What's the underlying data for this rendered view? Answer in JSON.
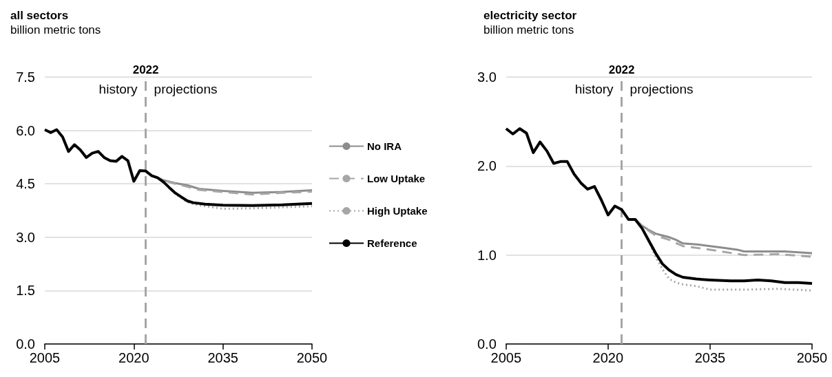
{
  "chart_data": [
    {
      "type": "line",
      "title": "all sectors",
      "subtitle": "billion metric tons",
      "xlim": [
        2005,
        2050
      ],
      "xticks": [
        2005,
        2020,
        2035,
        2050
      ],
      "ylim": [
        0,
        7.5
      ],
      "yticks": [
        {
          "value": 0,
          "label": "0.0"
        },
        1.5,
        {
          "value": 3,
          "label": "3.0"
        },
        4.5,
        {
          "value": 6,
          "label": "6.0"
        },
        7.5
      ],
      "grid": "y",
      "legend": "right",
      "marker": "none",
      "ref_lines": [
        {
          "axis": "x",
          "value": 2022,
          "label": "2022",
          "color": "#a6a6a6",
          "line_style": "dashed"
        }
      ],
      "annotations": [
        "history",
        "projections"
      ],
      "series": [
        {
          "name": "No IRA",
          "color": "#8c8c8c",
          "line_style": "solid",
          "x": [
            2023,
            2024,
            2025,
            2027,
            2029,
            2031,
            2035,
            2040,
            2045,
            2050
          ],
          "values": [
            4.73,
            4.67,
            4.6,
            4.52,
            4.46,
            4.36,
            4.3,
            4.25,
            4.27,
            4.32
          ]
        },
        {
          "name": "Low Uptake",
          "color": "#a6a6a6",
          "line_style": "dashed",
          "x": [
            2023,
            2024,
            2025,
            2027,
            2029,
            2031,
            2035,
            2040,
            2045,
            2050
          ],
          "values": [
            4.73,
            4.67,
            4.6,
            4.5,
            4.42,
            4.33,
            4.27,
            4.2,
            4.25,
            4.28
          ]
        },
        {
          "name": "High Uptake",
          "color": "#a6a6a6",
          "line_style": "dotted",
          "x": [
            2023,
            2024,
            2025,
            2026,
            2027,
            2028,
            2029,
            2030,
            2032,
            2035,
            2040,
            2045,
            2050
          ],
          "values": [
            4.73,
            4.67,
            4.55,
            4.38,
            4.22,
            4.1,
            3.99,
            3.93,
            3.87,
            3.8,
            3.81,
            3.84,
            3.87
          ]
        },
        {
          "name": "Reference",
          "color": "#000000",
          "line_style": "solid",
          "x": [
            2005,
            2006,
            2007,
            2008,
            2009,
            2010,
            2011,
            2012,
            2013,
            2014,
            2015,
            2016,
            2017,
            2018,
            2019,
            2020,
            2021,
            2022,
            2023,
            2024,
            2025,
            2026,
            2027,
            2028,
            2029,
            2030,
            2032,
            2035,
            2040,
            2045,
            2050
          ],
          "values": [
            6.02,
            5.94,
            6.02,
            5.82,
            5.41,
            5.6,
            5.45,
            5.24,
            5.36,
            5.41,
            5.24,
            5.15,
            5.13,
            5.27,
            5.15,
            4.57,
            4.87,
            4.86,
            4.73,
            4.67,
            4.55,
            4.39,
            4.24,
            4.13,
            4.02,
            3.97,
            3.93,
            3.9,
            3.89,
            3.91,
            3.95
          ]
        }
      ]
    },
    {
      "type": "line",
      "title": "electricity sector",
      "subtitle": "billion metric tons",
      "xlim": [
        2005,
        2050
      ],
      "xticks": [
        2005,
        2020,
        2035,
        2050
      ],
      "ylim": [
        0,
        3
      ],
      "yticks": [
        {
          "value": 0,
          "label": "0.0"
        },
        {
          "value": 1,
          "label": "1.0"
        },
        {
          "value": 2,
          "label": "2.0"
        },
        {
          "value": 3,
          "label": "3.0"
        }
      ],
      "grid": "y",
      "marker": "none",
      "ref_lines": [
        {
          "axis": "x",
          "value": 2022,
          "label": "2022",
          "color": "#a6a6a6",
          "line_style": "dashed"
        }
      ],
      "annotations": [
        "history",
        "projections"
      ],
      "series": [
        {
          "color": "#8c8c8c",
          "line_style": "solid",
          "x": [
            2024,
            2025,
            2026,
            2027,
            2028,
            2029,
            2030,
            2031,
            2033,
            2035,
            2037,
            2039,
            2040,
            2043,
            2046,
            2050
          ],
          "values": [
            1.4,
            1.33,
            1.28,
            1.24,
            1.22,
            1.2,
            1.17,
            1.13,
            1.12,
            1.1,
            1.08,
            1.06,
            1.04,
            1.04,
            1.04,
            1.02
          ]
        },
        {
          "color": "#a6a6a6",
          "line_style": "dashed",
          "x": [
            2024,
            2025,
            2026,
            2027,
            2029,
            2031,
            2035,
            2040,
            2045,
            2050
          ],
          "values": [
            1.4,
            1.33,
            1.27,
            1.22,
            1.17,
            1.1,
            1.06,
            1.0,
            1.01,
            0.98
          ]
        },
        {
          "color": "#a6a6a6",
          "line_style": "dotted",
          "x": [
            2024,
            2025,
            2026,
            2027,
            2028,
            2029,
            2030,
            2031,
            2033,
            2035,
            2040,
            2045,
            2050
          ],
          "values": [
            1.4,
            1.3,
            1.15,
            0.98,
            0.84,
            0.73,
            0.69,
            0.67,
            0.65,
            0.61,
            0.61,
            0.62,
            0.6
          ]
        },
        {
          "color": "#000000",
          "line_style": "solid",
          "x": [
            2005,
            2006,
            2007,
            2008,
            2009,
            2010,
            2011,
            2012,
            2013,
            2014,
            2015,
            2016,
            2017,
            2018,
            2019,
            2020,
            2021,
            2022,
            2023,
            2024,
            2025,
            2026,
            2027,
            2028,
            2029,
            2030,
            2031,
            2033,
            2035,
            2038,
            2040,
            2042,
            2044,
            2046,
            2048,
            2050
          ],
          "values": [
            2.42,
            2.36,
            2.42,
            2.37,
            2.15,
            2.27,
            2.17,
            2.03,
            2.05,
            2.05,
            1.91,
            1.81,
            1.74,
            1.77,
            1.62,
            1.45,
            1.55,
            1.51,
            1.4,
            1.4,
            1.3,
            1.16,
            1.02,
            0.9,
            0.83,
            0.78,
            0.75,
            0.73,
            0.72,
            0.71,
            0.71,
            0.72,
            0.71,
            0.69,
            0.69,
            0.68
          ]
        }
      ]
    }
  ]
}
